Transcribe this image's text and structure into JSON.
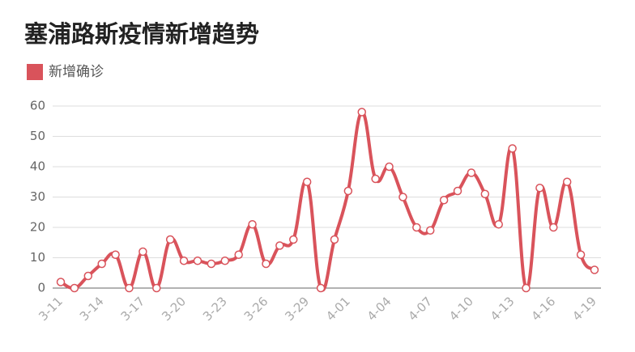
{
  "chart_data": {
    "type": "line",
    "title": "塞浦路斯疫情新增趋势",
    "categories": [
      "3-11",
      null,
      null,
      "3-14",
      null,
      null,
      "3-17",
      null,
      null,
      "3-20",
      null,
      null,
      "3-23",
      null,
      null,
      "3-26",
      null,
      null,
      "3-29",
      null,
      null,
      "4-01",
      null,
      null,
      "4-04",
      null,
      null,
      "4-07",
      null,
      null,
      "4-10",
      null,
      null,
      "4-13",
      null,
      null,
      "4-16",
      null,
      null,
      "4-19"
    ],
    "series": [
      {
        "name": "新增确诊",
        "color": "#d9535b",
        "values": [
          2,
          0,
          4,
          8,
          11,
          0,
          12,
          0,
          16,
          9,
          9,
          8,
          9,
          11,
          21,
          8,
          14,
          16,
          35,
          0,
          16,
          32,
          58,
          36,
          40,
          30,
          20,
          19,
          29,
          32,
          38,
          31,
          21,
          46,
          0,
          33,
          20,
          35,
          11,
          6
        ]
      }
    ],
    "ylim": [
      0,
      60
    ],
    "yticks": [
      0,
      10,
      20,
      30,
      40,
      50,
      60
    ],
    "grid": true,
    "legend": "top-left"
  }
}
